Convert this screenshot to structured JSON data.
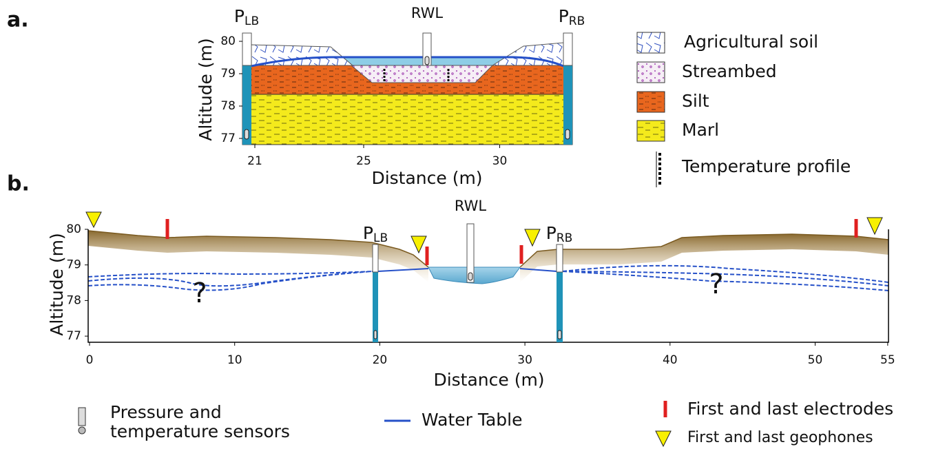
{
  "panel_a": {
    "label": "a.",
    "sensors": [
      {
        "name": "P",
        "sub": "LB"
      },
      {
        "name": "RWL"
      },
      {
        "name": "P",
        "sub": "RB"
      }
    ],
    "y_axis": {
      "title": "Altitude (m)",
      "ticks": [
        80,
        79,
        78,
        77
      ]
    },
    "x_axis": {
      "title": "Distance (m)",
      "ticks": [
        21,
        25,
        30
      ]
    },
    "legend": [
      "Agricultural soil",
      "Streambed",
      "Silt",
      "Marl",
      "Temperature profile"
    ]
  },
  "panel_b": {
    "label": "b.",
    "sensors": [
      {
        "name": "P",
        "sub": "LB"
      },
      {
        "name": "RWL"
      },
      {
        "name": "P",
        "sub": "RB"
      }
    ],
    "unknown": [
      "?",
      "?"
    ],
    "y_axis": {
      "title": "Altitude (m)",
      "ticks": [
        80,
        79,
        78,
        77
      ]
    },
    "x_axis": {
      "title": "Distance (m)",
      "ticks": [
        0,
        10,
        20,
        30,
        40,
        50,
        55
      ]
    }
  },
  "legend": {
    "sensors": [
      "Pressure and",
      "temperature sensors"
    ],
    "water_table": "Water Table",
    "electrodes": "First and last electrodes",
    "geophones": "First and last geophones"
  }
}
